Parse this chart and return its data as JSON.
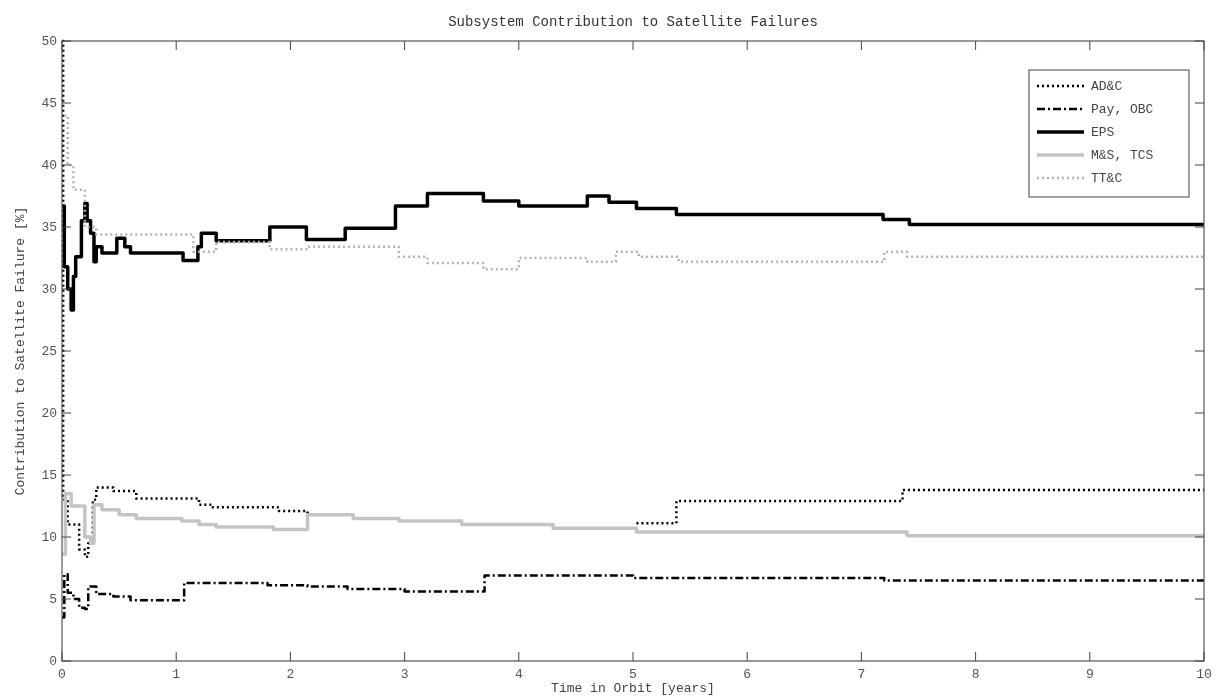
{
  "chart_data": {
    "type": "step",
    "title": "Subsystem Contribution to Satellite Failures",
    "xlabel": "Time in Orbit [years]",
    "ylabel": "Contribution to Satellite Failure [%]",
    "xlim": [
      0,
      10
    ],
    "xticks": [
      0,
      1,
      2,
      3,
      4,
      5,
      6,
      7,
      8,
      9,
      10
    ],
    "ylim": [
      0,
      50
    ],
    "yticks": [
      0,
      5,
      10,
      15,
      20,
      25,
      30,
      35,
      40,
      45,
      50
    ],
    "grid": false,
    "legend": "top right",
    "series": [
      {
        "name": "AD&C",
        "color": "#000000",
        "line_style": "dotted",
        "x": [
          0,
          0.01,
          0.05,
          0.15,
          0.2,
          0.23,
          0.27,
          0.3,
          0.45,
          0.65,
          1.2,
          1.32,
          1.9,
          2.15,
          2.55,
          2.95,
          3.5,
          4.3,
          5.03,
          5.38,
          7.36,
          10
        ],
        "values": [
          50,
          13,
          11,
          9,
          8.4,
          9.5,
          13,
          14,
          13.7,
          13.1,
          12.6,
          12.4,
          12.1,
          11.8,
          null,
          null,
          null,
          null,
          11.1,
          12.9,
          13.8,
          13.8
        ]
      },
      {
        "name": "Pay, OBC",
        "color": "#000000",
        "line_style": "dashed",
        "x": [
          0,
          0.02,
          0.05,
          0.1,
          0.15,
          0.2,
          0.23,
          0.3,
          0.45,
          0.6,
          1.07,
          1.8,
          2.15,
          2.5,
          3.0,
          3.7,
          5.0,
          7.2,
          10
        ],
        "values": [
          3.5,
          7,
          5.5,
          5,
          4.3,
          4.2,
          6,
          5.4,
          5.2,
          4.9,
          6.3,
          6.1,
          6,
          5.8,
          5.6,
          6.9,
          6.7,
          6.5,
          6.5
        ]
      },
      {
        "name": "EPS",
        "color": "#000000",
        "line_style": "solid",
        "x": [
          0,
          0.02,
          0.05,
          0.08,
          0.1,
          0.12,
          0.17,
          0.2,
          0.22,
          0.25,
          0.28,
          0.3,
          0.35,
          0.48,
          0.55,
          0.6,
          1.06,
          1.19,
          1.22,
          1.35,
          1.82,
          2.14,
          2.48,
          2.92,
          3.2,
          3.69,
          4.0,
          4.6,
          4.79,
          5.03,
          5.38,
          7.19,
          7.42,
          10
        ],
        "values": [
          36.7,
          31.8,
          30,
          28.3,
          31,
          32.6,
          35.5,
          36.9,
          35.5,
          34.5,
          32.2,
          33.4,
          32.9,
          34.1,
          33.4,
          32.9,
          32.3,
          33.4,
          34.5,
          33.9,
          35,
          34,
          34.9,
          36.7,
          37.7,
          37.1,
          36.7,
          37.5,
          37,
          36.5,
          36,
          35.6,
          35.2,
          35.2
        ]
      },
      {
        "name": "M&S, TCS",
        "color": "#c4c4c4",
        "line_style": "solid",
        "x": [
          0,
          0.03,
          0.08,
          0.2,
          0.25,
          0.28,
          0.35,
          0.5,
          0.65,
          1.05,
          1.2,
          1.35,
          1.85,
          2.15,
          2.55,
          2.95,
          3.5,
          4.3,
          5.03,
          7.4,
          10
        ],
        "values": [
          8.6,
          13.5,
          12.5,
          10,
          9.5,
          12.6,
          12.2,
          11.8,
          11.5,
          11.3,
          11,
          10.8,
          10.6,
          11.8,
          11.5,
          11.3,
          11,
          10.7,
          10.4,
          10.1,
          10.1
        ]
      },
      {
        "name": "TT&C",
        "color": "#b4b4b4",
        "line_style": "dotted",
        "x": [
          0.02,
          0.05,
          0.1,
          0.2,
          0.3,
          1.05,
          1.15,
          1.35,
          1.82,
          2.15,
          2.48,
          2.95,
          3.2,
          3.69,
          4.0,
          4.6,
          4.85,
          5.05,
          5.4,
          7.2,
          7.4,
          10
        ],
        "values": [
          44,
          40,
          38,
          35,
          34.4,
          34.4,
          33,
          33.8,
          33.2,
          33.4,
          33.4,
          32.6,
          32.1,
          31.6,
          32.5,
          32.2,
          33,
          32.6,
          32.2,
          33,
          32.6,
          32.6
        ]
      }
    ]
  }
}
